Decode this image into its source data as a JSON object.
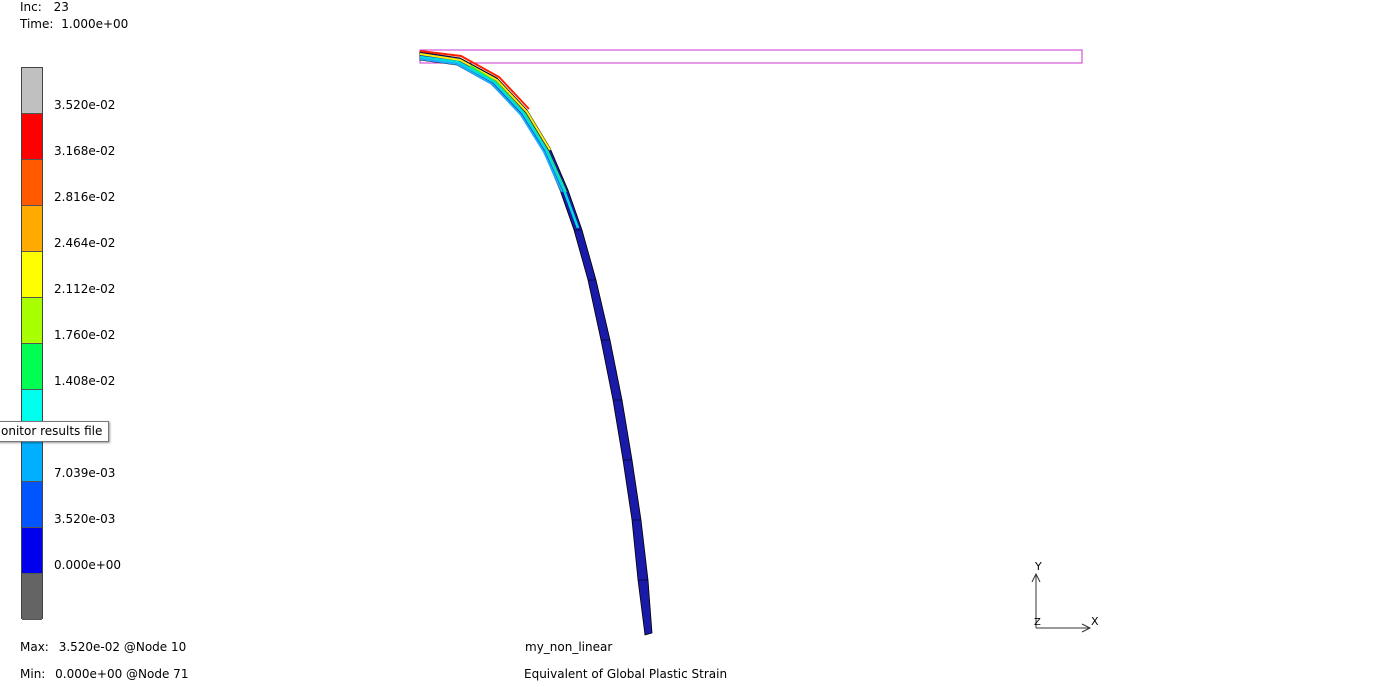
{
  "header": {
    "inc_label": "Inc:",
    "inc_value": "23",
    "time_label": "Time:",
    "time_value": "1.000e+00"
  },
  "legend": {
    "labels": [
      "3.520e-02",
      "3.168e-02",
      "2.816e-02",
      "2.464e-02",
      "2.112e-02",
      "1.760e-02",
      "1.408e-02",
      "",
      "7.039e-03",
      "3.520e-03",
      "0.000e+00"
    ],
    "band_colors": [
      "#c0c0c0",
      "#ff0000",
      "#ff5a00",
      "#ffaa00",
      "#ffff00",
      "#a8ff00",
      "#00ff50",
      "#00ffee",
      "#00b0ff",
      "#0055ff",
      "#0000ee",
      "#646464"
    ]
  },
  "tooltip": {
    "text": "onitor results file"
  },
  "footer": {
    "max_label": "Max:",
    "max_value": "3.520e-02 @Node  10",
    "min_label": "Min:",
    "min_value": "0.000e+00 @Node  71",
    "job_name": "my_non_linear",
    "result_name": "Equivalent of Global Plastic Strain"
  },
  "triad": {
    "y": "Y",
    "x": "X",
    "z": "Z"
  },
  "colors": {
    "original_outline": "#cc33cc",
    "deformed_body": "#1a1aa8",
    "edge": "#000000"
  }
}
